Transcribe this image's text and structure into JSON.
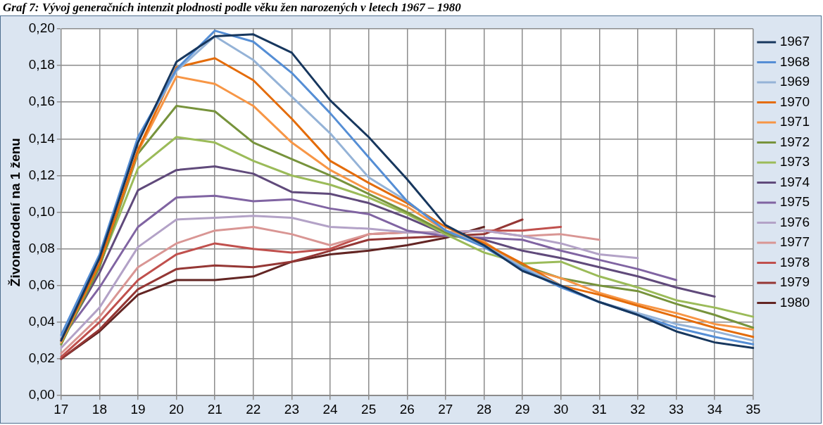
{
  "chart_data": {
    "type": "line",
    "title": "Graf 7: Vývoj generačních intenzit plodnosti podle věku žen narozených v letech 1967 – 1980",
    "ylabel": "Živonarodení na 1 ženu",
    "categories": [
      "17",
      "18",
      "19",
      "20",
      "21",
      "22",
      "23",
      "24",
      "25",
      "26",
      "27",
      "28",
      "29",
      "30",
      "31",
      "32",
      "33",
      "34",
      "35"
    ],
    "ylim": [
      0,
      0.2
    ],
    "yticks": [
      {
        "value": 0,
        "label": "0,00"
      },
      {
        "value": 0.02,
        "label": "0,02"
      },
      {
        "value": 0.04,
        "label": "0,04"
      },
      {
        "value": 0.06,
        "label": "0,06"
      },
      {
        "value": 0.08,
        "label": "0,08"
      },
      {
        "value": 0.1,
        "label": "0,10"
      },
      {
        "value": 0.12,
        "label": "0,12"
      },
      {
        "value": 0.14,
        "label": "0,14"
      },
      {
        "value": 0.16,
        "label": "0,16"
      },
      {
        "value": 0.18,
        "label": "0,18"
      },
      {
        "value": 0.2,
        "label": "0,20"
      }
    ],
    "grid": true,
    "legend": "right",
    "marker": "none",
    "line_style": "solid",
    "series": [
      {
        "name": "1967",
        "color": "#17375e",
        "values": [
          0.03,
          0.075,
          0.138,
          0.182,
          0.196,
          0.197,
          0.187,
          0.161,
          0.141,
          0.118,
          0.093,
          0.082,
          0.068,
          0.06,
          0.051,
          0.044,
          0.035,
          0.029,
          0.026
        ]
      },
      {
        "name": "1968",
        "color": "#558ed5",
        "values": [
          0.033,
          0.077,
          0.141,
          0.178,
          0.199,
          0.193,
          0.176,
          0.154,
          0.13,
          0.106,
          0.09,
          0.081,
          0.069,
          0.059,
          0.051,
          0.044,
          0.037,
          0.032,
          0.028
        ]
      },
      {
        "name": "1969",
        "color": "#95b3d7",
        "values": [
          0.032,
          0.076,
          0.14,
          0.177,
          0.196,
          0.183,
          0.163,
          0.143,
          0.119,
          0.106,
          0.09,
          0.082,
          0.07,
          0.06,
          0.051,
          0.045,
          0.039,
          0.035,
          0.03
        ]
      },
      {
        "name": "1970",
        "color": "#e46c0a",
        "values": [
          0.03,
          0.072,
          0.134,
          0.179,
          0.184,
          0.172,
          0.151,
          0.128,
          0.116,
          0.105,
          0.092,
          0.083,
          0.072,
          0.06,
          0.055,
          0.049,
          0.043,
          0.037,
          0.032
        ]
      },
      {
        "name": "1971",
        "color": "#f79646",
        "values": [
          0.029,
          0.072,
          0.133,
          0.174,
          0.17,
          0.158,
          0.138,
          0.123,
          0.112,
          0.103,
          0.09,
          0.084,
          0.07,
          0.064,
          0.056,
          0.05,
          0.045,
          0.039,
          0.036
        ]
      },
      {
        "name": "1972",
        "color": "#77933c",
        "values": [
          0.028,
          0.07,
          0.132,
          0.158,
          0.155,
          0.138,
          0.129,
          0.12,
          0.11,
          0.1,
          0.089,
          0.082,
          0.071,
          0.064,
          0.06,
          0.057,
          0.05,
          0.044,
          0.037
        ]
      },
      {
        "name": "1973",
        "color": "#9bbb59",
        "values": [
          0.028,
          0.071,
          0.124,
          0.141,
          0.138,
          0.128,
          0.12,
          0.115,
          0.108,
          0.099,
          0.088,
          0.078,
          0.072,
          0.073,
          0.065,
          0.059,
          0.052,
          0.048,
          0.043
        ]
      },
      {
        "name": "1974",
        "color": "#604a7b",
        "values": [
          0.03,
          0.067,
          0.112,
          0.123,
          0.125,
          0.121,
          0.111,
          0.11,
          0.105,
          0.097,
          0.088,
          0.085,
          0.079,
          0.075,
          0.07,
          0.065,
          0.059,
          0.054,
          null
        ]
      },
      {
        "name": "1975",
        "color": "#8064a2",
        "values": [
          0.031,
          0.059,
          0.092,
          0.108,
          0.109,
          0.106,
          0.107,
          0.102,
          0.099,
          0.09,
          0.087,
          0.086,
          0.085,
          0.079,
          0.074,
          0.069,
          0.063,
          null,
          null
        ]
      },
      {
        "name": "1976",
        "color": "#b3a2c7",
        "values": [
          0.026,
          0.048,
          0.081,
          0.096,
          0.097,
          0.098,
          0.097,
          0.092,
          0.091,
          0.089,
          0.089,
          0.09,
          0.087,
          0.083,
          0.077,
          0.075,
          null,
          null,
          null
        ]
      },
      {
        "name": "1977",
        "color": "#d99694",
        "values": [
          0.023,
          0.043,
          0.07,
          0.083,
          0.09,
          0.092,
          0.088,
          0.082,
          0.088,
          0.089,
          0.089,
          0.09,
          0.087,
          0.088,
          0.085,
          null,
          null,
          null,
          null
        ]
      },
      {
        "name": "1978",
        "color": "#c0504d",
        "values": [
          0.021,
          0.04,
          0.063,
          0.077,
          0.083,
          0.08,
          0.078,
          0.08,
          0.088,
          0.089,
          0.089,
          0.09,
          0.09,
          0.092,
          null,
          null,
          null,
          null,
          null
        ]
      },
      {
        "name": "1979",
        "color": "#953735",
        "values": [
          0.02,
          0.036,
          0.058,
          0.069,
          0.071,
          0.07,
          0.073,
          0.079,
          0.085,
          0.086,
          0.087,
          0.088,
          0.096,
          null,
          null,
          null,
          null,
          null,
          null
        ]
      },
      {
        "name": "1980",
        "color": "#632523",
        "values": [
          0.02,
          0.035,
          0.055,
          0.063,
          0.063,
          0.065,
          0.073,
          0.077,
          0.079,
          0.082,
          0.086,
          0.092,
          null,
          null,
          null,
          null,
          null,
          null,
          null
        ]
      }
    ]
  }
}
